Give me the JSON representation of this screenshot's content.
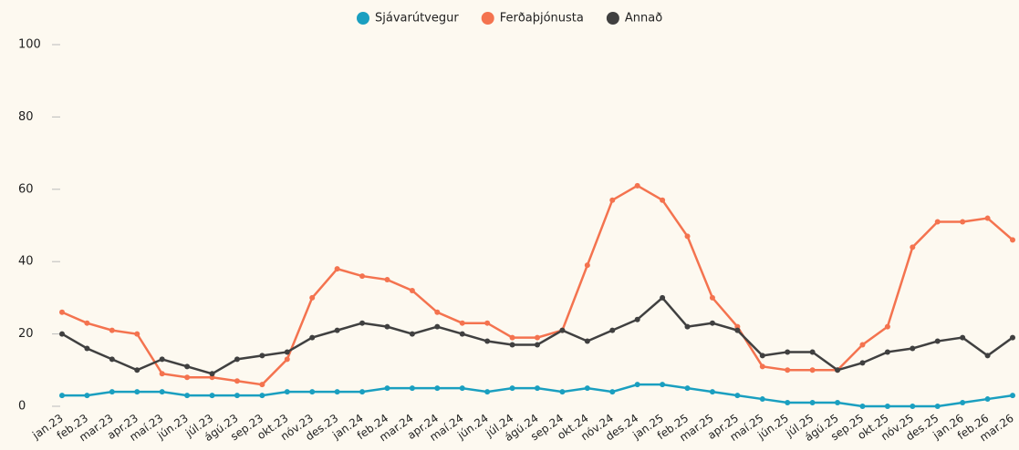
{
  "chart_data": {
    "type": "line",
    "categories": [
      "jan.23",
      "feb.23",
      "mar.23",
      "apr.23",
      "maí.23",
      "jún.23",
      "júl.23",
      "ágú.23",
      "sep.23",
      "okt.23",
      "nóv.23",
      "des.23",
      "jan.24",
      "feb.24",
      "mar.24",
      "apr.24",
      "maí.24",
      "jún.24",
      "júl.24",
      "ágú.24",
      "sep.24",
      "okt.24",
      "nóv.24",
      "des.24",
      "jan.25",
      "feb.25",
      "mar.25",
      "apr.25",
      "maí.25",
      "jún.25",
      "júl.25",
      "ágú.25",
      "sep.25",
      "okt.25",
      "nóv.25",
      "des.25",
      "jan.26",
      "feb.26",
      "mar.26"
    ],
    "series": [
      {
        "name": "Sjávarútvegur",
        "color": "#1a9fc0",
        "values": [
          3,
          3,
          4,
          4,
          4,
          3,
          3,
          3,
          3,
          4,
          4,
          4,
          4,
          5,
          5,
          5,
          5,
          4,
          5,
          5,
          4,
          5,
          4,
          6,
          6,
          5,
          4,
          3,
          2,
          1,
          1,
          1,
          0,
          0,
          0,
          0,
          1,
          2,
          3
        ]
      },
      {
        "name": "Ferðaþjónusta",
        "color": "#f4734f",
        "values": [
          26,
          23,
          21,
          20,
          9,
          8,
          8,
          7,
          6,
          13,
          30,
          38,
          36,
          35,
          32,
          26,
          23,
          23,
          19,
          19,
          21,
          39,
          57,
          61,
          57,
          47,
          30,
          22,
          11,
          10,
          10,
          10,
          17,
          22,
          44,
          51,
          51,
          52,
          46
        ]
      },
      {
        "name": "Annað",
        "color": "#404040",
        "values": [
          20,
          16,
          13,
          10,
          13,
          11,
          9,
          13,
          14,
          15,
          19,
          21,
          23,
          22,
          20,
          22,
          20,
          18,
          17,
          17,
          21,
          18,
          21,
          24,
          30,
          22,
          23,
          21,
          14,
          15,
          15,
          10,
          12,
          15,
          16,
          18,
          19,
          14,
          19
        ]
      }
    ],
    "ylim": [
      0,
      100
    ],
    "yticks": [
      0,
      20,
      40,
      60,
      80,
      100
    ],
    "legend": "top"
  }
}
